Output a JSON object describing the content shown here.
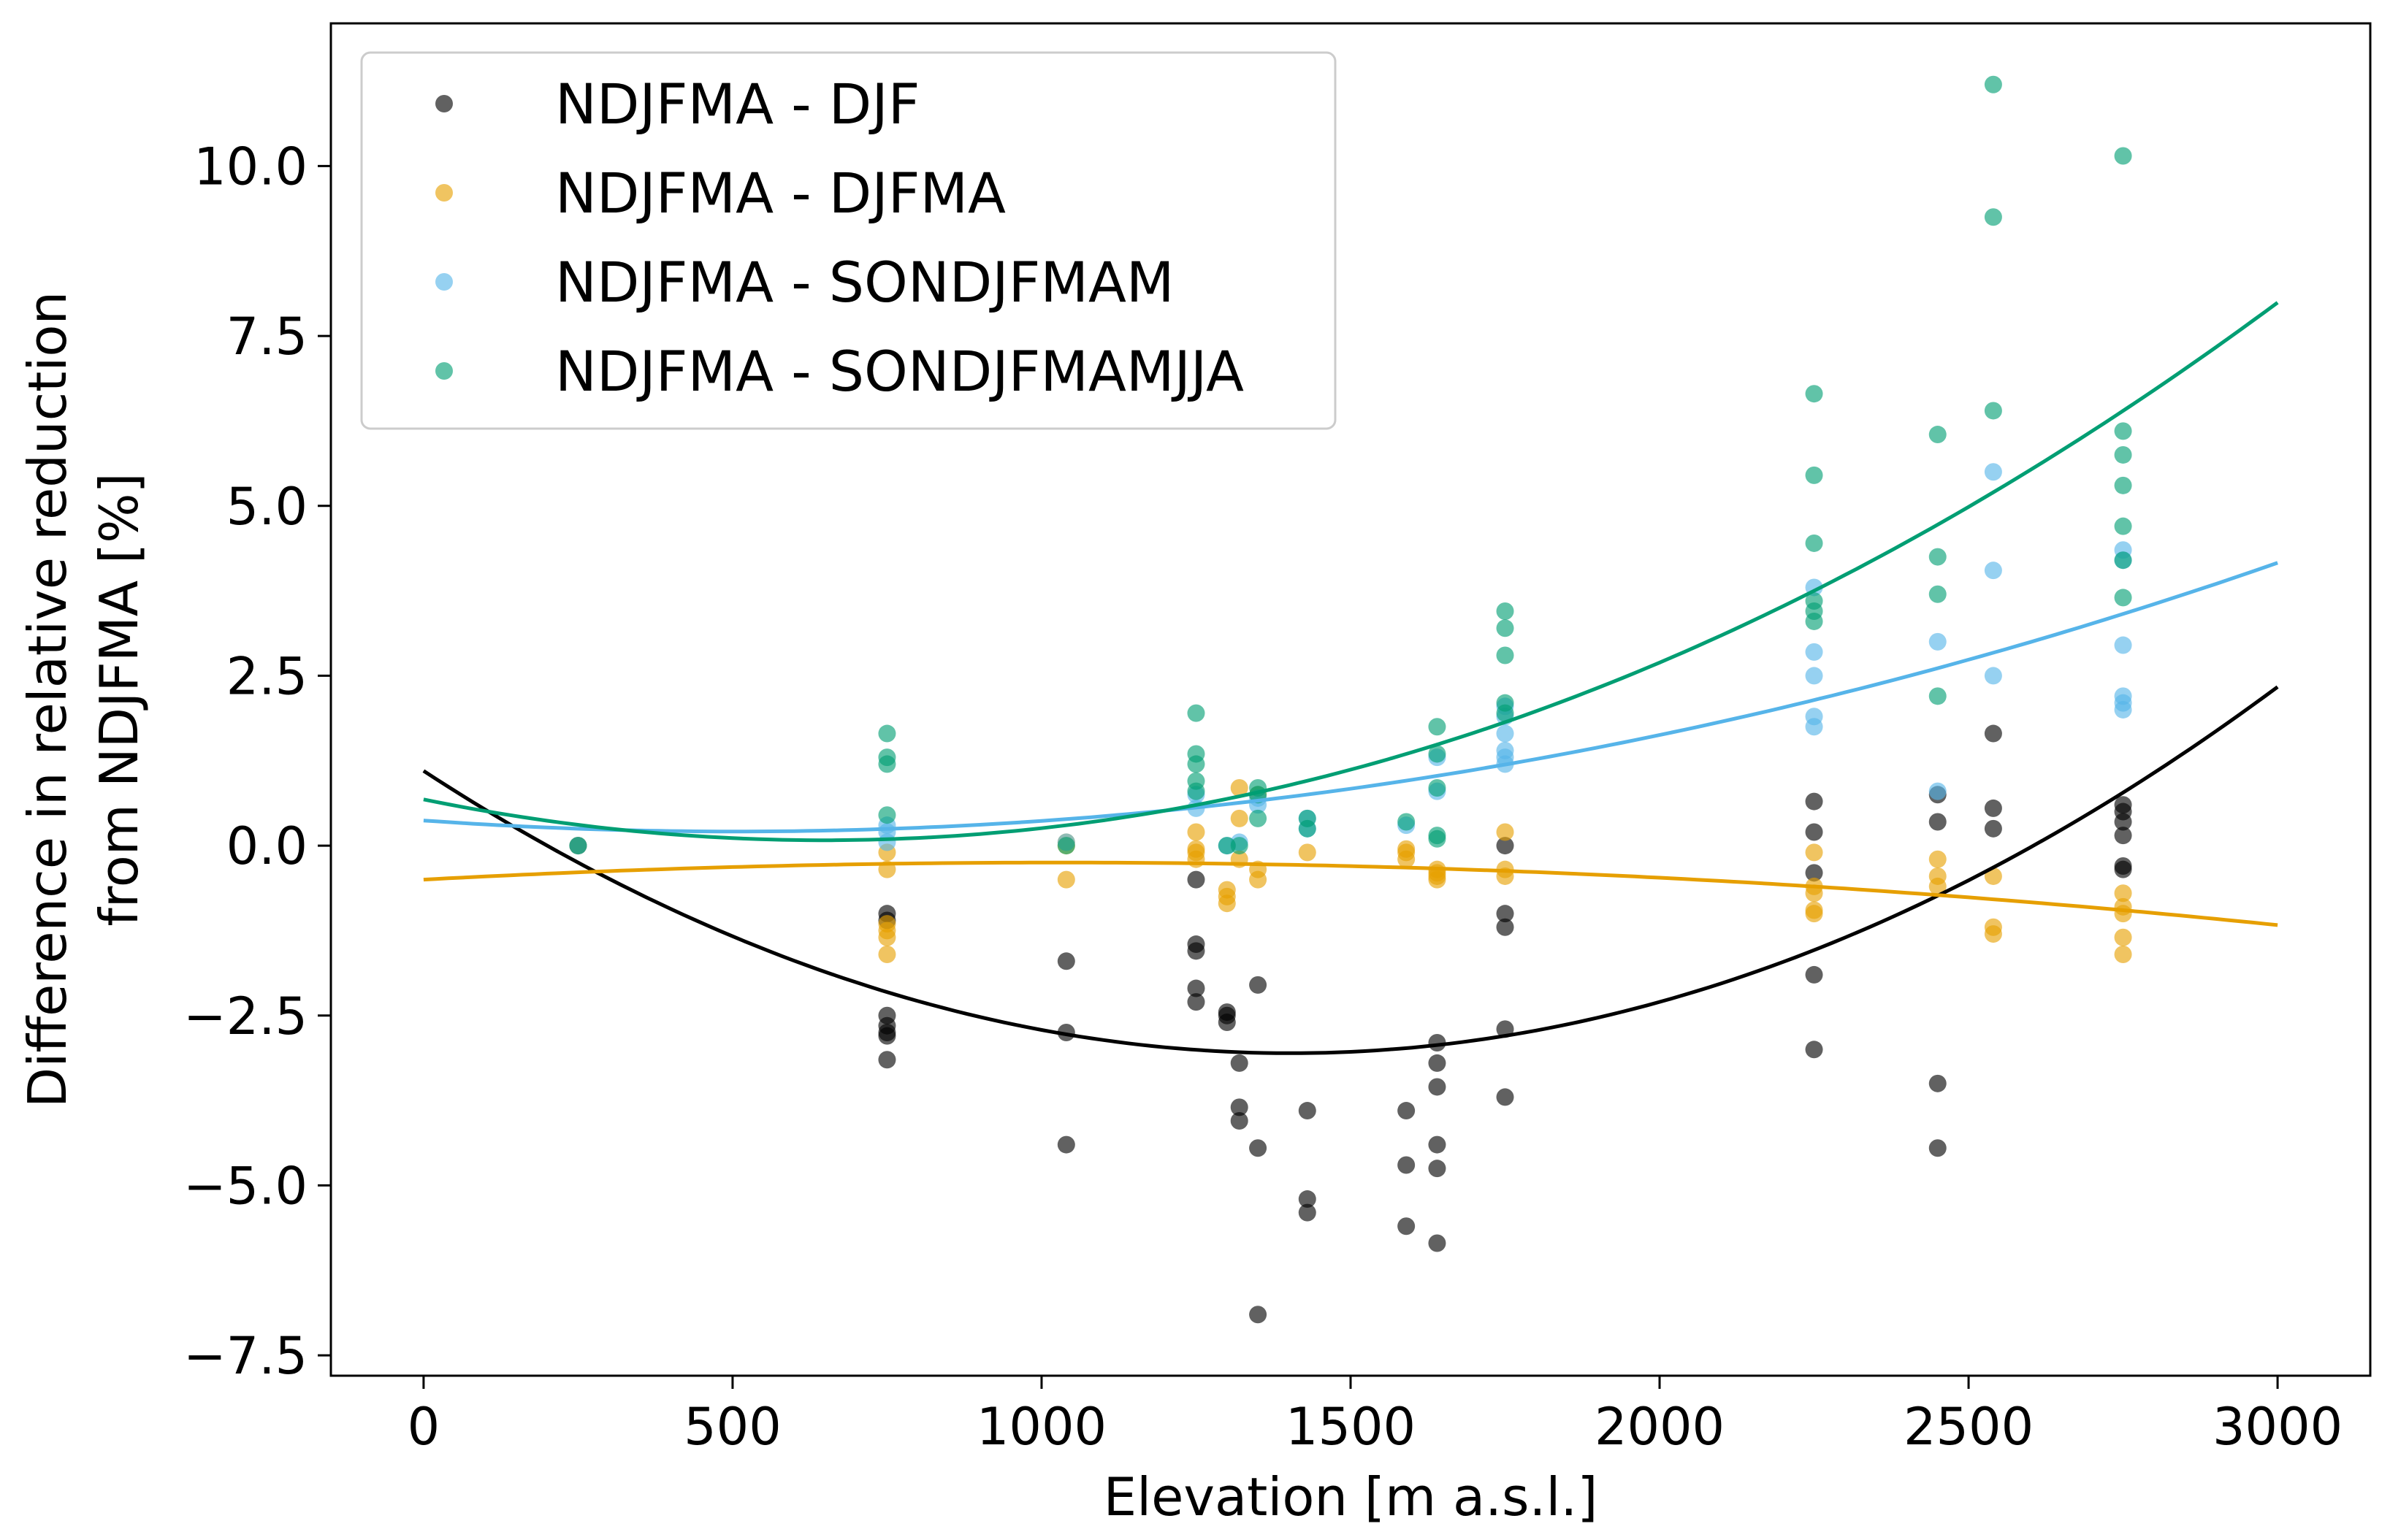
{
  "chart_data": {
    "type": "scatter",
    "title": "",
    "xlabel": "Elevation [m a.s.l.]",
    "ylabel_line1": "Difference in relative reduction",
    "ylabel_line2": "from NDJFMA [%]",
    "xlim": [
      -150,
      3150
    ],
    "ylim": [
      -7.8,
      12.1
    ],
    "xticks": [
      0,
      500,
      1000,
      1500,
      2000,
      2500,
      3000
    ],
    "xtick_labels": [
      "0",
      "500",
      "1000",
      "1500",
      "2000",
      "2500",
      "3000"
    ],
    "yticks": [
      -7.5,
      -5.0,
      -2.5,
      0.0,
      2.5,
      5.0,
      7.5,
      10.0
    ],
    "ytick_labels": [
      "−7.5",
      "−5.0",
      "−2.5",
      "0.0",
      "2.5",
      "5.0",
      "7.5",
      "10.0"
    ],
    "grid": false,
    "legend_position": "top-left",
    "series": [
      {
        "name": "NDJFMA - DJF",
        "color": "#000000",
        "points": [
          [
            250,
            0.0
          ],
          [
            750,
            -1.0
          ],
          [
            750,
            -1.1
          ],
          [
            750,
            -2.5
          ],
          [
            750,
            -2.65
          ],
          [
            750,
            -2.75
          ],
          [
            750,
            -2.8
          ],
          [
            750,
            -3.15
          ],
          [
            1040,
            -1.7
          ],
          [
            1040,
            -2.75
          ],
          [
            1040,
            -4.4
          ],
          [
            1250,
            -0.5
          ],
          [
            1250,
            -1.45
          ],
          [
            1250,
            -1.55
          ],
          [
            1250,
            -2.1
          ],
          [
            1250,
            -2.3
          ],
          [
            1300,
            -2.45
          ],
          [
            1300,
            -2.5
          ],
          [
            1300,
            -2.6
          ],
          [
            1320,
            -3.2
          ],
          [
            1320,
            -3.85
          ],
          [
            1320,
            -4.05
          ],
          [
            1350,
            -2.05
          ],
          [
            1350,
            -4.45
          ],
          [
            1350,
            -6.9
          ],
          [
            1430,
            -3.9
          ],
          [
            1430,
            -5.2
          ],
          [
            1430,
            -5.4
          ],
          [
            1590,
            -3.9
          ],
          [
            1590,
            -4.7
          ],
          [
            1590,
            -5.6
          ],
          [
            1640,
            -2.9
          ],
          [
            1640,
            -3.2
          ],
          [
            1640,
            -3.55
          ],
          [
            1640,
            -4.4
          ],
          [
            1640,
            -4.75
          ],
          [
            1640,
            -5.85
          ],
          [
            1750,
            0.0
          ],
          [
            1750,
            -1.0
          ],
          [
            1750,
            -1.2
          ],
          [
            1750,
            -2.7
          ],
          [
            1750,
            -3.7
          ],
          [
            2250,
            0.65
          ],
          [
            2250,
            0.2
          ],
          [
            2250,
            -0.4
          ],
          [
            2250,
            -1.9
          ],
          [
            2250,
            -3.0
          ],
          [
            2450,
            0.75
          ],
          [
            2450,
            0.35
          ],
          [
            2450,
            -3.5
          ],
          [
            2450,
            -4.45
          ],
          [
            2540,
            1.65
          ],
          [
            2540,
            0.55
          ],
          [
            2540,
            0.25
          ],
          [
            2750,
            0.6
          ],
          [
            2750,
            0.5
          ],
          [
            2750,
            0.35
          ],
          [
            2750,
            0.15
          ],
          [
            2750,
            -0.3
          ],
          [
            2750,
            -0.35
          ]
        ],
        "fit": [
          1.1,
          -0.005924,
          2.112e-06
        ]
      },
      {
        "name": "NDJFMA - DJFMA",
        "color": "#E69F00",
        "points": [
          [
            250,
            0.0
          ],
          [
            750,
            -0.1
          ],
          [
            750,
            -0.35
          ],
          [
            750,
            -1.15
          ],
          [
            750,
            -1.25
          ],
          [
            750,
            -1.35
          ],
          [
            750,
            -1.6
          ],
          [
            1040,
            0.05
          ],
          [
            1040,
            0.0
          ],
          [
            1040,
            -0.5
          ],
          [
            1250,
            0.2
          ],
          [
            1250,
            -0.05
          ],
          [
            1250,
            -0.1
          ],
          [
            1250,
            -0.2
          ],
          [
            1300,
            -0.65
          ],
          [
            1300,
            -0.75
          ],
          [
            1300,
            -0.85
          ],
          [
            1320,
            0.85
          ],
          [
            1320,
            0.4
          ],
          [
            1320,
            -0.2
          ],
          [
            1350,
            0.75
          ],
          [
            1350,
            -0.35
          ],
          [
            1350,
            -0.5
          ],
          [
            1430,
            -0.1
          ],
          [
            1590,
            -0.05
          ],
          [
            1590,
            -0.1
          ],
          [
            1590,
            -0.2
          ],
          [
            1640,
            -0.35
          ],
          [
            1640,
            -0.4
          ],
          [
            1640,
            -0.45
          ],
          [
            1640,
            -0.5
          ],
          [
            1750,
            0.2
          ],
          [
            1750,
            -0.35
          ],
          [
            1750,
            -0.45
          ],
          [
            2250,
            -0.1
          ],
          [
            2250,
            -0.6
          ],
          [
            2250,
            -0.7
          ],
          [
            2250,
            -0.95
          ],
          [
            2250,
            -1.0
          ],
          [
            2450,
            -0.2
          ],
          [
            2450,
            -0.45
          ],
          [
            2450,
            -0.6
          ],
          [
            2540,
            -0.45
          ],
          [
            2540,
            -1.2
          ],
          [
            2540,
            -1.3
          ],
          [
            2750,
            -0.7
          ],
          [
            2750,
            -0.9
          ],
          [
            2750,
            -1.0
          ],
          [
            2750,
            -1.35
          ],
          [
            2750,
            -1.6
          ]
        ],
        "fit": [
          -0.5,
          0.000488,
          -2.37e-07
        ]
      },
      {
        "name": "NDJFMA - SONDJFMAM",
        "color": "#56B4E9",
        "points": [
          [
            250,
            0.0
          ],
          [
            750,
            0.05
          ],
          [
            750,
            0.2
          ],
          [
            750,
            0.3
          ],
          [
            1040,
            0.05
          ],
          [
            1250,
            0.55
          ],
          [
            1250,
            0.75
          ],
          [
            1300,
            0.0
          ],
          [
            1320,
            0.05
          ],
          [
            1350,
            0.6
          ],
          [
            1350,
            0.7
          ],
          [
            1430,
            0.25
          ],
          [
            1430,
            0.4
          ],
          [
            1590,
            0.3
          ],
          [
            1640,
            0.8
          ],
          [
            1640,
            1.3
          ],
          [
            1750,
            1.2
          ],
          [
            1750,
            1.3
          ],
          [
            1750,
            1.4
          ],
          [
            1750,
            1.65
          ],
          [
            1750,
            1.9
          ],
          [
            1750,
            2.05
          ],
          [
            2250,
            1.75
          ],
          [
            2250,
            1.9
          ],
          [
            2250,
            2.5
          ],
          [
            2250,
            2.85
          ],
          [
            2250,
            3.8
          ],
          [
            2450,
            0.8
          ],
          [
            2450,
            3.0
          ],
          [
            2540,
            2.5
          ],
          [
            2540,
            4.05
          ],
          [
            2540,
            5.5
          ],
          [
            2750,
            2.0
          ],
          [
            2750,
            2.1
          ],
          [
            2750,
            2.2
          ],
          [
            2750,
            2.95
          ],
          [
            2750,
            4.2
          ],
          [
            2750,
            4.35
          ]
        ],
        "fit": [
          0.37,
          -0.000641,
          6.35e-07
        ]
      },
      {
        "name": "NDJFMA - SONDJFMAMJJA",
        "color": "#009E73",
        "points": [
          [
            250,
            0.0
          ],
          [
            750,
            1.65
          ],
          [
            750,
            1.3
          ],
          [
            750,
            1.2
          ],
          [
            750,
            0.45
          ],
          [
            1040,
            0.0
          ],
          [
            1250,
            1.95
          ],
          [
            1250,
            1.35
          ],
          [
            1250,
            1.2
          ],
          [
            1250,
            0.95
          ],
          [
            1250,
            0.8
          ],
          [
            1300,
            0.0
          ],
          [
            1320,
            0.0
          ],
          [
            1350,
            0.85
          ],
          [
            1350,
            0.75
          ],
          [
            1350,
            0.4
          ],
          [
            1430,
            0.4
          ],
          [
            1430,
            0.25
          ],
          [
            1590,
            0.35
          ],
          [
            1640,
            1.75
          ],
          [
            1640,
            1.35
          ],
          [
            1640,
            0.85
          ],
          [
            1640,
            0.15
          ],
          [
            1640,
            0.1
          ],
          [
            1750,
            3.45
          ],
          [
            1750,
            3.2
          ],
          [
            1750,
            2.8
          ],
          [
            1750,
            2.1
          ],
          [
            1750,
            1.95
          ],
          [
            2250,
            6.65
          ],
          [
            2250,
            5.45
          ],
          [
            2250,
            4.45
          ],
          [
            2250,
            3.6
          ],
          [
            2250,
            3.45
          ],
          [
            2250,
            3.3
          ],
          [
            2450,
            6.05
          ],
          [
            2450,
            4.25
          ],
          [
            2450,
            3.7
          ],
          [
            2450,
            2.2
          ],
          [
            2540,
            11.2
          ],
          [
            2540,
            9.25
          ],
          [
            2540,
            6.4
          ],
          [
            2750,
            10.15
          ],
          [
            2750,
            6.1
          ],
          [
            2750,
            5.75
          ],
          [
            2750,
            5.3
          ],
          [
            2750,
            4.7
          ],
          [
            2750,
            4.2
          ],
          [
            2750,
            3.65
          ]
        ],
        "fit": [
          0.68,
          -0.001853,
          1.43e-06
        ]
      }
    ]
  }
}
